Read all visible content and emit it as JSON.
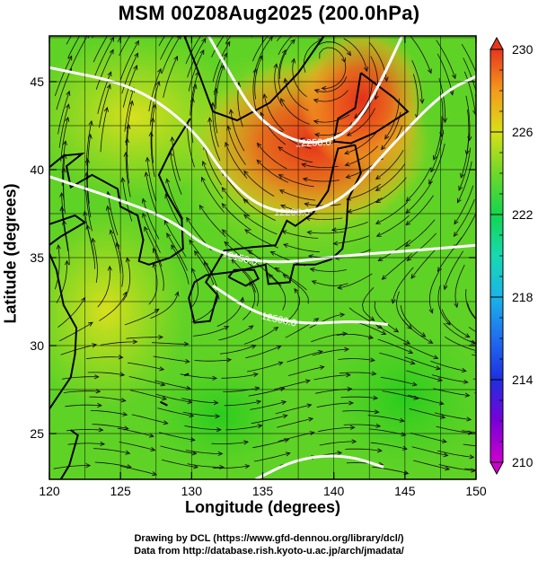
{
  "title": "MSM 00Z08Aug2025 (200.0hPa)",
  "xlabel": "Longitude (degrees)",
  "ylabel": "Latitude  (degrees)",
  "credits": {
    "line1": "Drawing by DCL (https://www.gfd-dennou.org/library/dcl/)",
    "line2": "Data from http://database.rish.kyoto-u.ac.jp/arch/jmadata/"
  },
  "chart_data": {
    "type": "heatmap",
    "title": "MSM 00Z08Aug2025 (200.0hPa)",
    "xlabel": "Longitude (degrees)",
    "ylabel": "Latitude  (degrees)",
    "xlim": [
      120,
      150
    ],
    "ylim": [
      22.4,
      47.6
    ],
    "xticks": [
      120,
      125,
      130,
      135,
      140,
      145,
      150
    ],
    "yticks": [
      25,
      30,
      35,
      40,
      45
    ],
    "grid": true,
    "colorbar": {
      "min": 210,
      "max": 230,
      "ticks": [
        210,
        214,
        218,
        222,
        226,
        230
      ],
      "placement": "right"
    },
    "geopotential_contours": [
      {
        "label": "12250.0",
        "points": [
          [
            131.2,
            47.6
          ],
          [
            132.6,
            45.6
          ],
          [
            134.5,
            43.0
          ],
          [
            137.3,
            41.5
          ],
          [
            139.8,
            41.6
          ],
          [
            141.6,
            42.6
          ],
          [
            143.2,
            44.8
          ],
          [
            144.8,
            47.6
          ]
        ]
      },
      {
        "label": "12200.0",
        "points": [
          [
            120,
            45.8
          ],
          [
            126,
            44.8
          ],
          [
            130.2,
            42.3
          ],
          [
            132.5,
            39.4
          ],
          [
            135.3,
            37.6
          ],
          [
            138.8,
            37.6
          ],
          [
            141.2,
            38.7
          ],
          [
            143.4,
            40.8
          ],
          [
            147.5,
            44.3
          ],
          [
            150,
            45.3
          ]
        ]
      },
      {
        "label": "12150.0",
        "points": [
          [
            120,
            39.6
          ],
          [
            124.5,
            38.4
          ],
          [
            128.5,
            37.2
          ],
          [
            131.3,
            35.4
          ],
          [
            135.5,
            34.6
          ],
          [
            140.5,
            35.1
          ],
          [
            145.5,
            35.4
          ],
          [
            150,
            35.7
          ]
        ]
      },
      {
        "label": "12500.0",
        "points": [
          [
            131.5,
            33.4
          ],
          [
            134.5,
            31.8
          ],
          [
            137.8,
            31.2
          ],
          [
            141.3,
            31.4
          ],
          [
            143.8,
            31.2
          ]
        ]
      },
      {
        "label": "",
        "points": [
          [
            134.5,
            22.4
          ],
          [
            137.5,
            23.6
          ],
          [
            140.8,
            23.8
          ],
          [
            143.5,
            23.1
          ]
        ]
      }
    ],
    "temperature_field_approx": [
      {
        "lon": 141.5,
        "lat": 43.5,
        "value": 229
      },
      {
        "lon": 137.5,
        "lat": 40.5,
        "value": 227.5
      },
      {
        "lon": 132.0,
        "lat": 38.0,
        "value": 225
      },
      {
        "lon": 128.0,
        "lat": 42.0,
        "value": 223.5
      },
      {
        "lon": 125.0,
        "lat": 30.0,
        "value": 223
      },
      {
        "lon": 140.0,
        "lat": 28.0,
        "value": 222
      },
      {
        "lon": 148.0,
        "lat": 26.0,
        "value": 222
      }
    ]
  }
}
